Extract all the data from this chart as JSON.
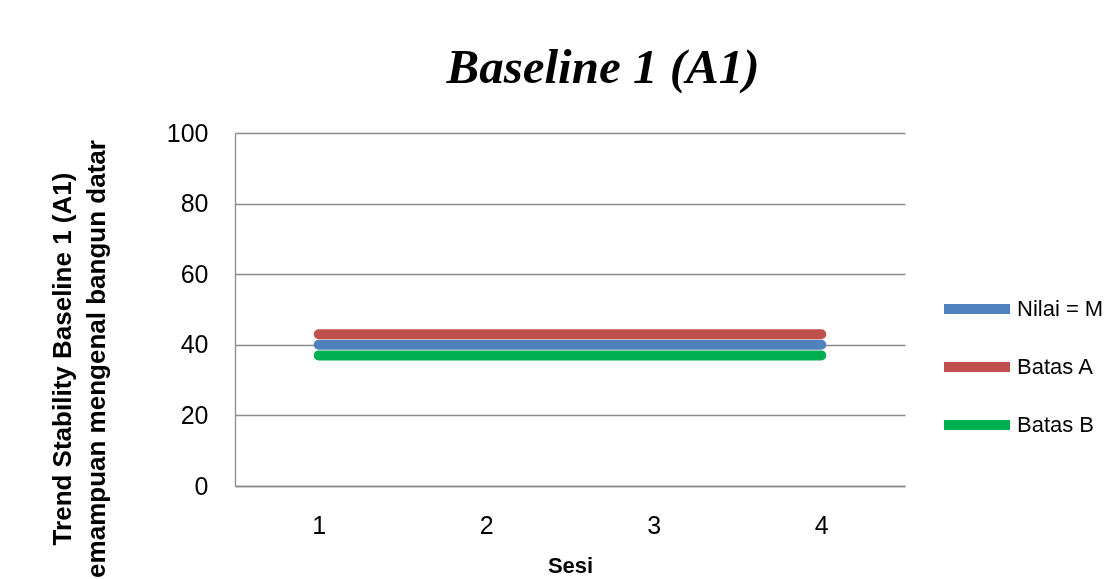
{
  "chart_data": {
    "type": "line",
    "title": "Baseline 1 (A1)",
    "xlabel": "Sesi",
    "ylabel": "Trend Stability Baseline 1 (A1)\nemampuan mengenal bangun datar",
    "categories": [
      "1",
      "2",
      "3",
      "4"
    ],
    "series": [
      {
        "name": "Nilai = M",
        "color": "#4f81bd",
        "values": [
          40,
          40,
          40,
          40
        ]
      },
      {
        "name": "Batas A",
        "color": "#c0504d",
        "values": [
          43,
          43,
          43,
          43
        ]
      },
      {
        "name": "Batas B",
        "color": "#00b050",
        "values": [
          37,
          37,
          37,
          37
        ]
      }
    ],
    "ylim": [
      0,
      100
    ],
    "yticks": [
      0,
      20,
      40,
      60,
      80,
      100
    ],
    "grid": "y",
    "legend": "right",
    "line_style": "solid"
  }
}
